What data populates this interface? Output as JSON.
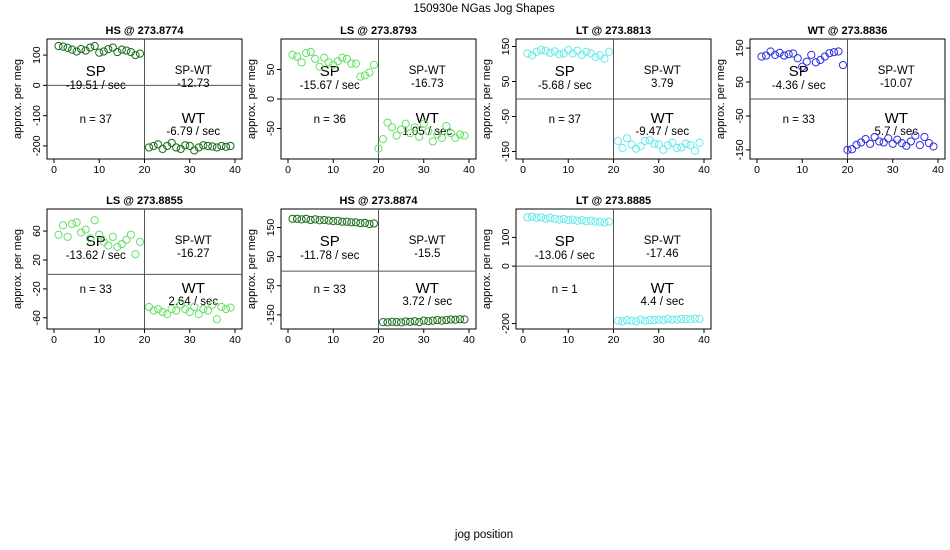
{
  "figure": {
    "title": "150930e   NGas Jog Shapes",
    "xlabel": "jog position",
    "ylabel": "approx. per meg"
  },
  "chart_data": [
    {
      "type": "scatter",
      "title": "HS @ 273.8774",
      "color": "#1a6b1a",
      "xlim": [
        0,
        40
      ],
      "ylim": [
        -230,
        140
      ],
      "yticks": [
        -200,
        -100,
        0,
        100
      ],
      "xticks": [
        0,
        10,
        20,
        30,
        40
      ],
      "sp_label": "SP",
      "sp_rate": "-19.51 / sec",
      "spwt_label": "SP-WT",
      "spwt_value": "-12.73",
      "n_text": "n = 37",
      "wt_label": "WT",
      "wt_rate": "-6.79 / sec",
      "x": [
        1,
        2,
        3,
        4,
        5,
        6,
        7,
        8,
        9,
        10,
        11,
        12,
        13,
        14,
        15,
        16,
        17,
        18,
        19,
        21,
        22,
        23,
        24,
        25,
        26,
        27,
        28,
        29,
        30,
        31,
        32,
        33,
        34,
        35,
        36,
        37,
        38,
        39
      ],
      "y": [
        130,
        128,
        124,
        118,
        112,
        120,
        115,
        125,
        130,
        108,
        112,
        120,
        125,
        110,
        118,
        115,
        110,
        100,
        105,
        -205,
        -200,
        -195,
        -210,
        -200,
        -190,
        -205,
        -210,
        -198,
        -200,
        -215,
        -205,
        -198,
        -200,
        -202,
        -205,
        -200,
        -203,
        -200
      ]
    },
    {
      "type": "scatter",
      "title": "LS @ 273.8793",
      "color": "#66e066",
      "xlim": [
        0,
        40
      ],
      "ylim": [
        -95,
        95
      ],
      "yticks": [
        -50,
        0,
        50
      ],
      "xticks": [
        0,
        10,
        20,
        30,
        40
      ],
      "sp_label": "SP",
      "sp_rate": "-15.67 / sec",
      "spwt_label": "SP-WT",
      "spwt_value": "-16.73",
      "n_text": "n = 36",
      "wt_label": "WT",
      "wt_rate": "1.05 / sec",
      "x": [
        1,
        2,
        3,
        4,
        5,
        6,
        7,
        8,
        9,
        10,
        11,
        12,
        13,
        14,
        15,
        16,
        17,
        18,
        19,
        20,
        21,
        22,
        23,
        24,
        25,
        26,
        27,
        28,
        29,
        30,
        31,
        32,
        33,
        34,
        35,
        36,
        37,
        38,
        39
      ],
      "y": [
        75,
        72,
        62,
        78,
        80,
        68,
        55,
        70,
        62,
        58,
        64,
        70,
        68,
        60,
        60,
        38,
        40,
        45,
        58,
        -84,
        -68,
        -40,
        -48,
        -62,
        -52,
        -42,
        -58,
        -48,
        -64,
        -42,
        -55,
        -72,
        -60,
        -66,
        -46,
        -58,
        -66,
        -60,
        -62
      ]
    },
    {
      "type": "scatter",
      "title": "LT @ 273.8813",
      "color": "#66eaea",
      "xlim": [
        0,
        40
      ],
      "ylim": [
        -160,
        160
      ],
      "yticks": [
        -150,
        -50,
        50,
        150
      ],
      "xticks": [
        0,
        10,
        20,
        30,
        40
      ],
      "sp_label": "SP",
      "sp_rate": "-5.68 / sec",
      "spwt_label": "SP-WT",
      "spwt_value": "3.79",
      "n_text": "n = 37",
      "wt_label": "WT",
      "wt_rate": "-9.47 / sec",
      "x": [
        1,
        2,
        3,
        4,
        5,
        6,
        7,
        8,
        9,
        10,
        11,
        12,
        13,
        14,
        15,
        16,
        17,
        18,
        19,
        21,
        22,
        23,
        24,
        25,
        26,
        27,
        28,
        29,
        30,
        31,
        32,
        33,
        34,
        35,
        36,
        37,
        38,
        39
      ],
      "y": [
        130,
        125,
        135,
        140,
        138,
        132,
        136,
        128,
        130,
        140,
        130,
        138,
        126,
        135,
        130,
        120,
        125,
        115,
        135,
        -120,
        -140,
        -112,
        -130,
        -142,
        -135,
        -120,
        -118,
        -128,
        -130,
        -145,
        -132,
        -125,
        -140,
        -138,
        -128,
        -132,
        -148,
        -125
      ]
    },
    {
      "type": "scatter",
      "title": "WT @ 273.8836",
      "color": "#3030dd",
      "xlim": [
        0,
        40
      ],
      "ylim": [
        -165,
        165
      ],
      "yticks": [
        -150,
        -50,
        50,
        150
      ],
      "xticks": [
        0,
        10,
        20,
        30,
        40
      ],
      "sp_label": "SP",
      "sp_rate": "-4.36 / sec",
      "spwt_label": "SP-WT",
      "spwt_value": "-10.07",
      "n_text": "n = 33",
      "wt_label": "WT",
      "wt_rate": "5.7 / sec",
      "x": [
        1,
        2,
        3,
        4,
        5,
        6,
        7,
        8,
        9,
        10,
        11,
        12,
        13,
        14,
        15,
        16,
        17,
        18,
        19,
        20,
        21,
        22,
        23,
        24,
        25,
        26,
        27,
        28,
        29,
        30,
        31,
        32,
        33,
        34,
        35,
        36,
        37,
        38,
        39
      ],
      "y": [
        125,
        128,
        140,
        130,
        136,
        128,
        132,
        134,
        120,
        95,
        110,
        130,
        108,
        115,
        125,
        135,
        138,
        140,
        100,
        -150,
        -148,
        -135,
        -128,
        -118,
        -132,
        -112,
        -125,
        -128,
        -116,
        -132,
        -120,
        -130,
        -138,
        -125,
        -108,
        -136,
        -112,
        -130,
        -140
      ]
    },
    {
      "type": "scatter",
      "title": "LS @ 273.8855",
      "color": "#66e066",
      "xlim": [
        0,
        40
      ],
      "ylim": [
        -70,
        85
      ],
      "yticks": [
        -60,
        -20,
        20,
        60
      ],
      "xticks": [
        0,
        10,
        20,
        30,
        40
      ],
      "sp_label": "SP",
      "sp_rate": "-13.62 / sec",
      "spwt_label": "SP-WT",
      "spwt_value": "-16.27",
      "n_text": "n = 33",
      "wt_label": "WT",
      "wt_rate": "2.64 / sec",
      "x": [
        1,
        2,
        3,
        4,
        5,
        6,
        7,
        8,
        9,
        10,
        11,
        12,
        13,
        14,
        15,
        16,
        17,
        18,
        19,
        21,
        22,
        23,
        24,
        25,
        26,
        27,
        28,
        29,
        30,
        31,
        32,
        33,
        34,
        35,
        36,
        37,
        38,
        39
      ],
      "y": [
        55,
        68,
        52,
        70,
        72,
        58,
        62,
        50,
        75,
        55,
        45,
        40,
        52,
        38,
        42,
        48,
        55,
        28,
        45,
        -45,
        -50,
        -48,
        -52,
        -55,
        -48,
        -50,
        -42,
        -48,
        -52,
        -45,
        -55,
        -48,
        -50,
        -42,
        -62,
        -45,
        -48,
        -46
      ]
    },
    {
      "type": "scatter",
      "title": "HS @ 273.8874",
      "color": "#1a6b1a",
      "xlim": [
        0,
        40
      ],
      "ylim": [
        -185,
        200
      ],
      "yticks": [
        -150,
        -50,
        50,
        150
      ],
      "xticks": [
        0,
        10,
        20,
        30,
        40
      ],
      "sp_label": "SP",
      "sp_rate": "-11.78 / sec",
      "spwt_label": "SP-WT",
      "spwt_value": "-15.5",
      "n_text": "n = 33",
      "wt_label": "WT",
      "wt_rate": "3.72 / sec",
      "x": [
        1,
        2,
        3,
        4,
        5,
        6,
        7,
        8,
        9,
        10,
        11,
        12,
        13,
        14,
        15,
        16,
        17,
        18,
        19,
        21,
        22,
        23,
        24,
        25,
        26,
        27,
        28,
        29,
        30,
        31,
        32,
        33,
        34,
        35,
        36,
        37,
        38,
        39
      ],
      "y": [
        180,
        180,
        178,
        180,
        176,
        178,
        175,
        176,
        174,
        172,
        173,
        170,
        170,
        168,
        168,
        165,
        166,
        162,
        164,
        -175,
        -176,
        -174,
        -175,
        -176,
        -173,
        -174,
        -172,
        -175,
        -170,
        -172,
        -170,
        -168,
        -170,
        -168,
        -166,
        -167,
        -165,
        -166
      ]
    },
    {
      "type": "scatter",
      "title": "LT @ 273.8885",
      "color": "#66eaea",
      "xlim": [
        0,
        40
      ],
      "ylim": [
        -205,
        185
      ],
      "yticks": [
        -200,
        0,
        100
      ],
      "xticks": [
        0,
        10,
        20,
        30,
        40
      ],
      "sp_label": "SP",
      "sp_rate": "-13.06 / sec",
      "spwt_label": "SP-WT",
      "spwt_value": "-17.46",
      "n_text": "n = 1",
      "wt_label": "WT",
      "wt_rate": "4.4 / sec",
      "x": [
        1,
        2,
        3,
        4,
        5,
        6,
        7,
        8,
        9,
        10,
        11,
        12,
        13,
        14,
        15,
        16,
        17,
        18,
        19,
        21,
        22,
        23,
        24,
        25,
        26,
        27,
        28,
        29,
        30,
        31,
        32,
        33,
        34,
        35,
        36,
        37,
        38,
        39
      ],
      "y": [
        170,
        172,
        168,
        170,
        165,
        168,
        165,
        162,
        164,
        160,
        162,
        158,
        160,
        156,
        158,
        155,
        154,
        152,
        155,
        -190,
        -192,
        -188,
        -190,
        -192,
        -186,
        -190,
        -188,
        -188,
        -186,
        -188,
        -184,
        -186,
        -186,
        -184,
        -184,
        -185,
        -183,
        -184
      ]
    }
  ]
}
